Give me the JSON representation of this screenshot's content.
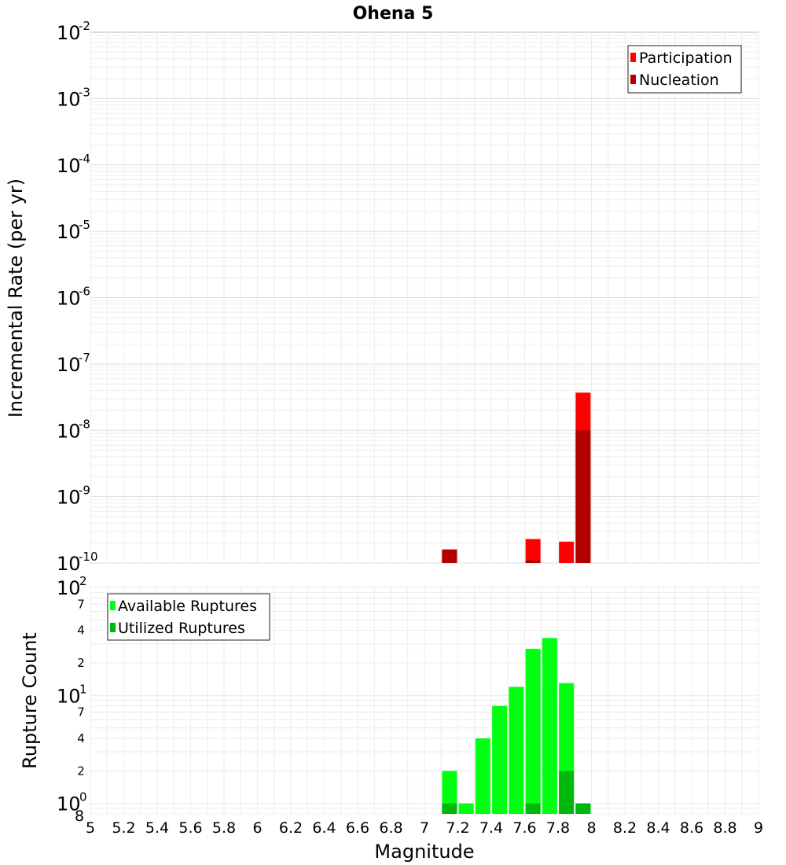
{
  "chart_data": [
    {
      "type": "bar",
      "title": "Ohena 5",
      "xlabel": "",
      "ylabel": "Incremental Rate (per yr)",
      "y_scale": "log",
      "ylim": [
        1e-10,
        0.01
      ],
      "xlim": [
        5,
        9
      ],
      "grid": true,
      "legend_position": "top-right",
      "x": [
        7.15,
        7.65,
        7.85,
        7.95
      ],
      "series": [
        {
          "name": "Participation",
          "color": "#ff0000",
          "values": [
            1.6e-10,
            2.3e-10,
            2.1e-10,
            3.7e-08
          ]
        },
        {
          "name": "Nucleation",
          "color": "#b20000",
          "values": [
            1.6e-10,
            1.1e-10,
            null,
            1e-08
          ]
        }
      ],
      "y_ticks": [
        {
          "base": "10",
          "exp": "-2"
        },
        {
          "base": "10",
          "exp": "-3"
        },
        {
          "base": "10",
          "exp": "-4"
        },
        {
          "base": "10",
          "exp": "-5"
        },
        {
          "base": "10",
          "exp": "-6"
        },
        {
          "base": "10",
          "exp": "-7"
        },
        {
          "base": "10",
          "exp": "-8"
        },
        {
          "base": "10",
          "exp": "-9"
        },
        {
          "base": "10",
          "exp": "-10"
        }
      ]
    },
    {
      "type": "bar",
      "title": "",
      "xlabel": "Magnitude",
      "ylabel": "Rupture Count",
      "y_scale": "log",
      "ylim": [
        0.8,
        100
      ],
      "xlim": [
        5,
        9
      ],
      "grid": true,
      "legend_position": "top-left",
      "x": [
        7.15,
        7.25,
        7.35,
        7.45,
        7.55,
        7.65,
        7.75,
        7.85,
        7.95
      ],
      "series": [
        {
          "name": "Available Ruptures",
          "color": "#00ff11",
          "values": [
            2,
            1,
            4,
            8,
            12,
            27,
            34,
            13,
            1
          ]
        },
        {
          "name": "Utilized Ruptures",
          "color": "#00b80c",
          "values": [
            1,
            null,
            null,
            null,
            null,
            1,
            null,
            2,
            1
          ]
        }
      ],
      "y_major_ticks": [
        {
          "value": 100,
          "base": "10",
          "exp": "2"
        },
        {
          "value": 10,
          "base": "10",
          "exp": "1"
        },
        {
          "value": 1,
          "base": "10",
          "exp": "0"
        }
      ],
      "y_minor_ticks": [
        {
          "value": 70,
          "label": "7"
        },
        {
          "value": 40,
          "label": "4"
        },
        {
          "value": 20,
          "label": "2"
        },
        {
          "value": 7,
          "label": "7"
        },
        {
          "value": 4,
          "label": "4"
        },
        {
          "value": 2,
          "label": "2"
        },
        {
          "value": 0.8,
          "label": "8"
        }
      ],
      "x_ticks": [
        "5",
        "5.2",
        "5.4",
        "5.6",
        "5.8",
        "6",
        "6.2",
        "6.4",
        "6.6",
        "6.8",
        "7",
        "7.2",
        "7.4",
        "7.6",
        "7.8",
        "8",
        "8.2",
        "8.4",
        "8.6",
        "8.8",
        "9"
      ]
    }
  ]
}
